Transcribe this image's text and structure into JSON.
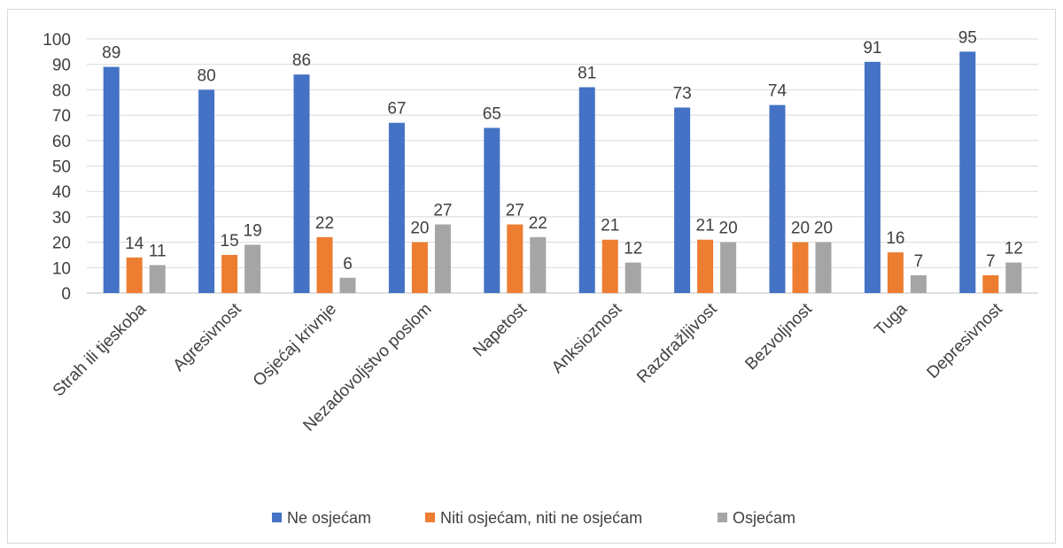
{
  "chart_data": {
    "type": "bar",
    "title": "",
    "xlabel": "",
    "ylabel": "",
    "ylim": [
      0,
      100
    ],
    "yticks": [
      0,
      10,
      20,
      30,
      40,
      50,
      60,
      70,
      80,
      90,
      100
    ],
    "grid": true,
    "legend_position": "bottom",
    "categories": [
      "Strah ili tjeskoba",
      "Agresivnost",
      "Osjećaj krivnje",
      "Nezadovoljstvo poslom",
      "Napetost",
      "Anksioznost",
      "Razdražljivost",
      "Bezvoljnost",
      "Tuga",
      "Depresivnost"
    ],
    "series": [
      {
        "name": "Ne osjećam",
        "color": "#4472c4",
        "values": [
          89,
          80,
          86,
          67,
          65,
          81,
          73,
          74,
          91,
          95
        ]
      },
      {
        "name": "Niti osjećam, niti ne osjećam",
        "color": "#ed7d31",
        "values": [
          14,
          15,
          22,
          20,
          27,
          21,
          21,
          20,
          16,
          7
        ]
      },
      {
        "name": "Osjećam",
        "color": "#a5a5a5",
        "values": [
          11,
          19,
          6,
          27,
          22,
          12,
          20,
          20,
          7,
          12
        ]
      }
    ]
  }
}
